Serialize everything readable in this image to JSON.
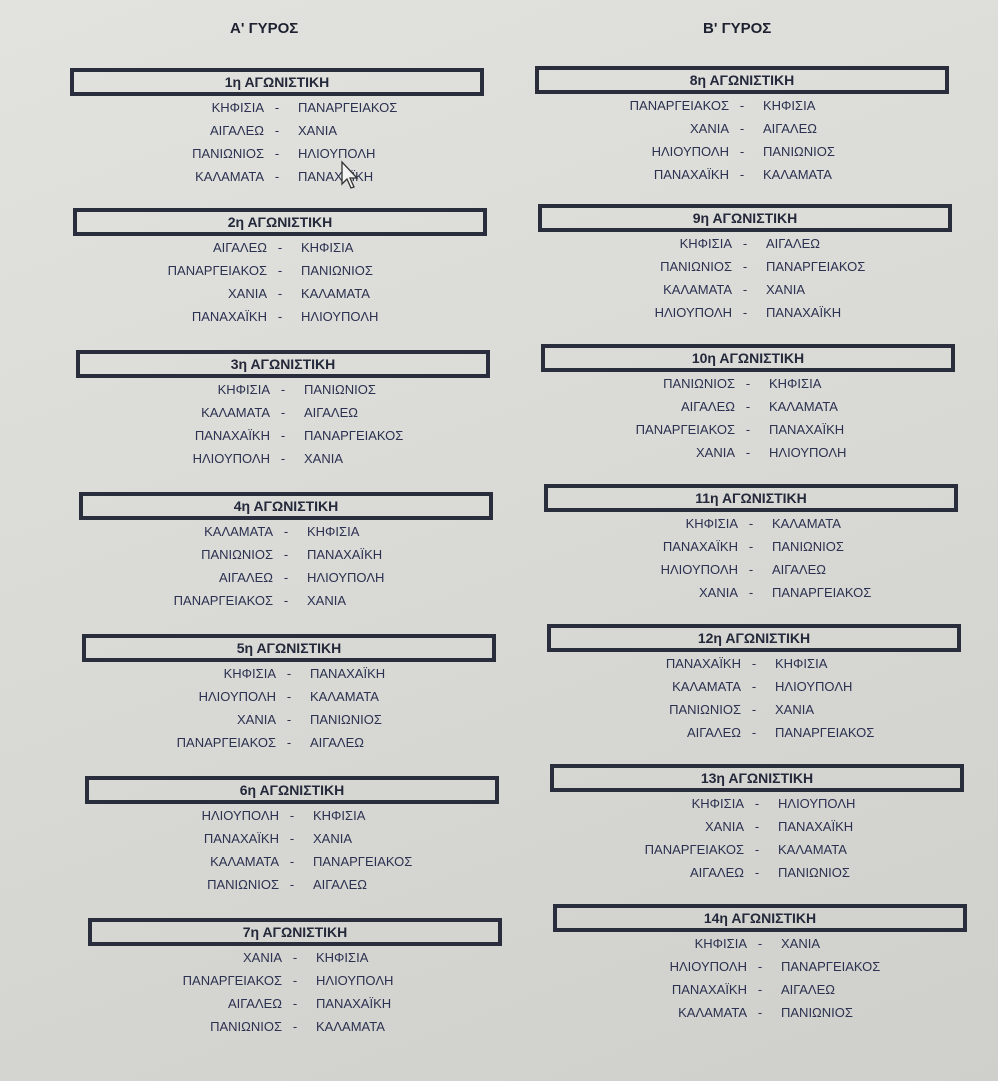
{
  "rounds": [
    {
      "title": "Α' ΓΥΡΟΣ",
      "matchdays": [
        {
          "label": "1η ΑΓΩΝΙΣΤΙΚΗ",
          "matches": [
            [
              "ΚΗΦΙΣΙΑ",
              "ΠΑΝΑΡΓΕΙΑΚΟΣ"
            ],
            [
              "ΑΙΓΑΛΕΩ",
              "ΧΑΝΙΑ"
            ],
            [
              "ΠΑΝΙΩΝΙΟΣ",
              "ΗΛΙΟΥΠΟΛΗ"
            ],
            [
              "ΚΑΛΑΜΑΤΑ",
              "ΠΑΝΑΧΑΪΚΗ"
            ]
          ]
        },
        {
          "label": "2η ΑΓΩΝΙΣΤΙΚΗ",
          "matches": [
            [
              "ΑΙΓΑΛΕΩ",
              "ΚΗΦΙΣΙΑ"
            ],
            [
              "ΠΑΝΑΡΓΕΙΑΚΟΣ",
              "ΠΑΝΙΩΝΙΟΣ"
            ],
            [
              "ΧΑΝΙΑ",
              "ΚΑΛΑΜΑΤΑ"
            ],
            [
              "ΠΑΝΑΧΑΪΚΗ",
              "ΗΛΙΟΥΠΟΛΗ"
            ]
          ]
        },
        {
          "label": "3η ΑΓΩΝΙΣΤΙΚΗ",
          "matches": [
            [
              "ΚΗΦΙΣΙΑ",
              "ΠΑΝΙΩΝΙΟΣ"
            ],
            [
              "ΚΑΛΑΜΑΤΑ",
              "ΑΙΓΑΛΕΩ"
            ],
            [
              "ΠΑΝΑΧΑΪΚΗ",
              "ΠΑΝΑΡΓΕΙΑΚΟΣ"
            ],
            [
              "ΗΛΙΟΥΠΟΛΗ",
              "ΧΑΝΙΑ"
            ]
          ]
        },
        {
          "label": "4η ΑΓΩΝΙΣΤΙΚΗ",
          "matches": [
            [
              "ΚΑΛΑΜΑΤΑ",
              "ΚΗΦΙΣΙΑ"
            ],
            [
              "ΠΑΝΙΩΝΙΟΣ",
              "ΠΑΝΑΧΑΪΚΗ"
            ],
            [
              "ΑΙΓΑΛΕΩ",
              "ΗΛΙΟΥΠΟΛΗ"
            ],
            [
              "ΠΑΝΑΡΓΕΙΑΚΟΣ",
              "ΧΑΝΙΑ"
            ]
          ]
        },
        {
          "label": "5η ΑΓΩΝΙΣΤΙΚΗ",
          "matches": [
            [
              "ΚΗΦΙΣΙΑ",
              "ΠΑΝΑΧΑΪΚΗ"
            ],
            [
              "ΗΛΙΟΥΠΟΛΗ",
              "ΚΑΛΑΜΑΤΑ"
            ],
            [
              "ΧΑΝΙΑ",
              "ΠΑΝΙΩΝΙΟΣ"
            ],
            [
              "ΠΑΝΑΡΓΕΙΑΚΟΣ",
              "ΑΙΓΑΛΕΩ"
            ]
          ]
        },
        {
          "label": "6η ΑΓΩΝΙΣΤΙΚΗ",
          "matches": [
            [
              "ΗΛΙΟΥΠΟΛΗ",
              "ΚΗΦΙΣΙΑ"
            ],
            [
              "ΠΑΝΑΧΑΪΚΗ",
              "ΧΑΝΙΑ"
            ],
            [
              "ΚΑΛΑΜΑΤΑ",
              "ΠΑΝΑΡΓΕΙΑΚΟΣ"
            ],
            [
              "ΠΑΝΙΩΝΙΟΣ",
              "ΑΙΓΑΛΕΩ"
            ]
          ]
        },
        {
          "label": "7η ΑΓΩΝΙΣΤΙΚΗ",
          "matches": [
            [
              "ΧΑΝΙΑ",
              "ΚΗΦΙΣΙΑ"
            ],
            [
              "ΠΑΝΑΡΓΕΙΑΚΟΣ",
              "ΗΛΙΟΥΠΟΛΗ"
            ],
            [
              "ΑΙΓΑΛΕΩ",
              "ΠΑΝΑΧΑΪΚΗ"
            ],
            [
              "ΠΑΝΙΩΝΙΟΣ",
              "ΚΑΛΑΜΑΤΑ"
            ]
          ]
        }
      ]
    },
    {
      "title": "Β' ΓΥΡΟΣ",
      "matchdays": [
        {
          "label": "8η ΑΓΩΝΙΣΤΙΚΗ",
          "matches": [
            [
              "ΠΑΝΑΡΓΕΙΑΚΟΣ",
              "ΚΗΦΙΣΙΑ"
            ],
            [
              "ΧΑΝΙΑ",
              "ΑΙΓΑΛΕΩ"
            ],
            [
              "ΗΛΙΟΥΠΟΛΗ",
              "ΠΑΝΙΩΝΙΟΣ"
            ],
            [
              "ΠΑΝΑΧΑΪΚΗ",
              "ΚΑΛΑΜΑΤΑ"
            ]
          ]
        },
        {
          "label": "9η ΑΓΩΝΙΣΤΙΚΗ",
          "matches": [
            [
              "ΚΗΦΙΣΙΑ",
              "ΑΙΓΑΛΕΩ"
            ],
            [
              "ΠΑΝΙΩΝΙΟΣ",
              "ΠΑΝΑΡΓΕΙΑΚΟΣ"
            ],
            [
              "ΚΑΛΑΜΑΤΑ",
              "ΧΑΝΙΑ"
            ],
            [
              "ΗΛΙΟΥΠΟΛΗ",
              "ΠΑΝΑΧΑΪΚΗ"
            ]
          ]
        },
        {
          "label": "10η ΑΓΩΝΙΣΤΙΚΗ",
          "matches": [
            [
              "ΠΑΝΙΩΝΙΟΣ",
              "ΚΗΦΙΣΙΑ"
            ],
            [
              "ΑΙΓΑΛΕΩ",
              "ΚΑΛΑΜΑΤΑ"
            ],
            [
              "ΠΑΝΑΡΓΕΙΑΚΟΣ",
              "ΠΑΝΑΧΑΪΚΗ"
            ],
            [
              "ΧΑΝΙΑ",
              "ΗΛΙΟΥΠΟΛΗ"
            ]
          ]
        },
        {
          "label": "11η ΑΓΩΝΙΣΤΙΚΗ",
          "matches": [
            [
              "ΚΗΦΙΣΙΑ",
              "ΚΑΛΑΜΑΤΑ"
            ],
            [
              "ΠΑΝΑΧΑΪΚΗ",
              "ΠΑΝΙΩΝΙΟΣ"
            ],
            [
              "ΗΛΙΟΥΠΟΛΗ",
              "ΑΙΓΑΛΕΩ"
            ],
            [
              "ΧΑΝΙΑ",
              "ΠΑΝΑΡΓΕΙΑΚΟΣ"
            ]
          ]
        },
        {
          "label": "12η ΑΓΩΝΙΣΤΙΚΗ",
          "matches": [
            [
              "ΠΑΝΑΧΑΪΚΗ",
              "ΚΗΦΙΣΙΑ"
            ],
            [
              "ΚΑΛΑΜΑΤΑ",
              "ΗΛΙΟΥΠΟΛΗ"
            ],
            [
              "ΠΑΝΙΩΝΙΟΣ",
              "ΧΑΝΙΑ"
            ],
            [
              "ΑΙΓΑΛΕΩ",
              "ΠΑΝΑΡΓΕΙΑΚΟΣ"
            ]
          ]
        },
        {
          "label": "13η ΑΓΩΝΙΣΤΙΚΗ",
          "matches": [
            [
              "ΚΗΦΙΣΙΑ",
              "ΗΛΙΟΥΠΟΛΗ"
            ],
            [
              "ΧΑΝΙΑ",
              "ΠΑΝΑΧΑΪΚΗ"
            ],
            [
              "ΠΑΝΑΡΓΕΙΑΚΟΣ",
              "ΚΑΛΑΜΑΤΑ"
            ],
            [
              "ΑΙΓΑΛΕΩ",
              "ΠΑΝΙΩΝΙΟΣ"
            ]
          ]
        },
        {
          "label": "14η ΑΓΩΝΙΣΤΙΚΗ",
          "matches": [
            [
              "ΚΗΦΙΣΙΑ",
              "ΧΑΝΙΑ"
            ],
            [
              "ΗΛΙΟΥΠΟΛΗ",
              "ΠΑΝΑΡΓΕΙΑΚΟΣ"
            ],
            [
              "ΠΑΝΑΧΑΪΚΗ",
              "ΑΙΓΑΛΕΩ"
            ],
            [
              "ΚΑΛΑΜΑΤΑ",
              "ΠΑΝΙΩΝΙΟΣ"
            ]
          ]
        }
      ]
    }
  ],
  "separator": "-",
  "cursor_icon": "mouse-pointer-icon"
}
